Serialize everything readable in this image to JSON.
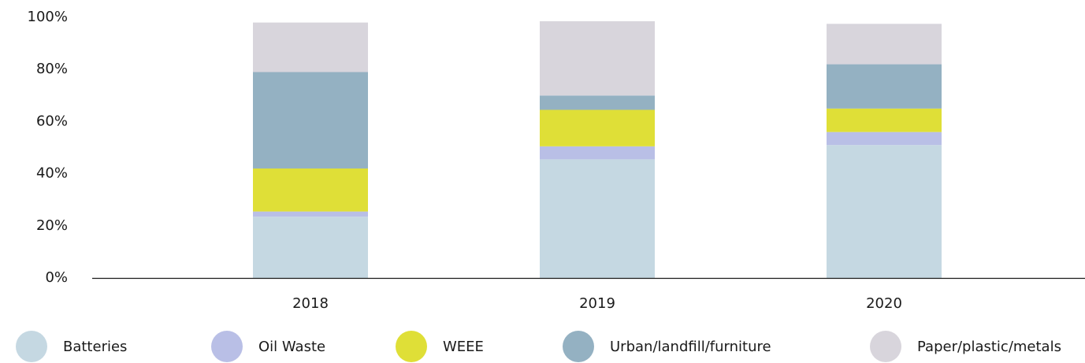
{
  "chart_data": {
    "type": "stacked_bar",
    "categories": [
      "2018",
      "2019",
      "2020"
    ],
    "series": [
      {
        "name": "Batteries",
        "color": "#c5d8e2",
        "values": [
          23.5,
          45.5,
          51
        ]
      },
      {
        "name": "Oil Waste",
        "color": "#b9bfe6",
        "values": [
          2,
          5,
          5
        ]
      },
      {
        "name": "WEEE",
        "color": "#dfdf37",
        "values": [
          16.5,
          14,
          9
        ]
      },
      {
        "name": "Urban/landfill/furniture",
        "color": "#94b1c2",
        "values": [
          37,
          5.5,
          17
        ]
      },
      {
        "name": "Paper/plastic/metals",
        "color": "#d8d5dc",
        "values": [
          19,
          28.5,
          15.5
        ]
      }
    ],
    "ylim": [
      0,
      100
    ],
    "yticks": [
      {
        "value": 0,
        "label": "0%"
      },
      {
        "value": 20,
        "label": "20%"
      },
      {
        "value": 40,
        "label": "40%"
      },
      {
        "value": 60,
        "label": "60%"
      },
      {
        "value": 80,
        "label": "80%"
      },
      {
        "value": 100,
        "label": "100%"
      }
    ],
    "grid": false,
    "legend": "bottom"
  }
}
